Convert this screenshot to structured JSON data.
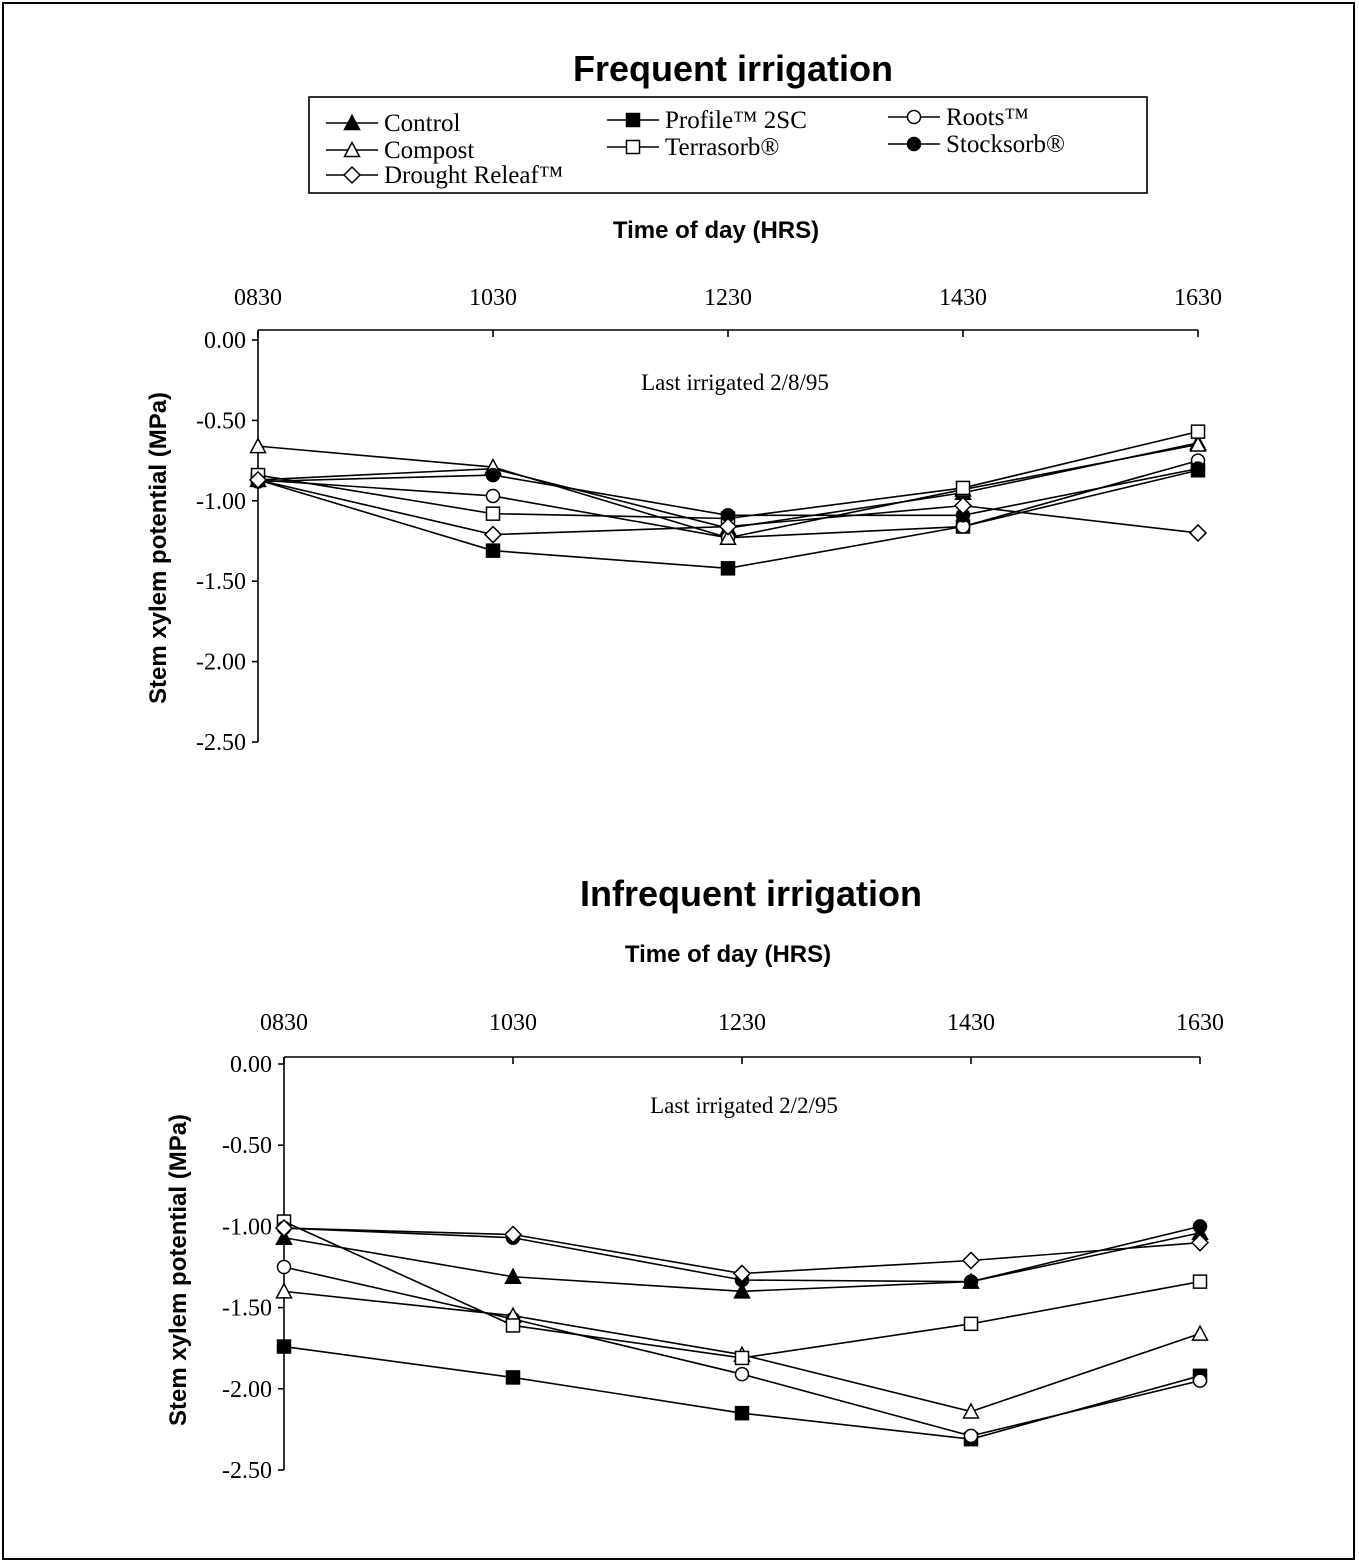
{
  "figure": {
    "legend": [
      {
        "name": "Control",
        "marker": "triangle-filled"
      },
      {
        "name": "Profile™ 2SC",
        "marker": "square-filled"
      },
      {
        "name": "Roots™",
        "marker": "circle-open"
      },
      {
        "name": "Compost",
        "marker": "triangle-open"
      },
      {
        "name": "Terrasorb®",
        "marker": "square-open"
      },
      {
        "name": "Stocksorb®",
        "marker": "circle-filled"
      },
      {
        "name": "Drought Releaf™",
        "marker": "diamond-open"
      }
    ]
  },
  "chart_data": [
    {
      "type": "line",
      "title": "Frequent irrigation",
      "xlabel": "Time of day (HRS)",
      "ylabel": "Stem xylem potential (MPa)",
      "annotation": "Last irrigated 2/8/95",
      "x": [
        "0830",
        "1030",
        "1230",
        "1430",
        "1630"
      ],
      "ylim": [
        -2.5,
        0
      ],
      "yticks": [
        "0.00",
        "-0.50",
        "-1.00",
        "-1.50",
        "-2.00",
        "-2.50"
      ],
      "x_axis_position": "top",
      "series": [
        {
          "name": "Control",
          "values": [
            -0.87,
            -0.8,
            -1.17,
            -0.95,
            -0.64
          ]
        },
        {
          "name": "Profile™ 2SC",
          "values": [
            -0.87,
            -1.31,
            -1.42,
            -1.16,
            -0.81
          ]
        },
        {
          "name": "Roots™",
          "values": [
            -0.87,
            -0.97,
            -1.23,
            -1.16,
            -0.75
          ]
        },
        {
          "name": "Compost",
          "values": [
            -0.66,
            -0.79,
            -1.23,
            -0.93,
            -0.65
          ]
        },
        {
          "name": "Terrasorb®",
          "values": [
            -0.84,
            -1.08,
            -1.11,
            -0.92,
            -0.57
          ]
        },
        {
          "name": "Stocksorb®",
          "values": [
            -0.88,
            -0.84,
            -1.09,
            -1.09,
            -0.8
          ]
        },
        {
          "name": "Drought Releaf™",
          "values": [
            -0.87,
            -1.21,
            -1.16,
            -1.03,
            -1.2
          ]
        }
      ]
    },
    {
      "type": "line",
      "title": "Infrequent irrigation",
      "xlabel": "Time of day (HRS)",
      "ylabel": "Stem xylem potential (MPa)",
      "annotation": "Last irrigated 2/2/95",
      "x": [
        "0830",
        "1030",
        "1230",
        "1430",
        "1630"
      ],
      "ylim": [
        -2.5,
        0
      ],
      "yticks": [
        "0.00",
        "-0.50",
        "-1.00",
        "-1.50",
        "-2.00",
        "-2.50"
      ],
      "x_axis_position": "top",
      "series": [
        {
          "name": "Control",
          "values": [
            -1.07,
            -1.31,
            -1.4,
            -1.34,
            -1.04
          ]
        },
        {
          "name": "Profile™ 2SC",
          "values": [
            -1.74,
            -1.93,
            -2.15,
            -2.31,
            -1.92
          ]
        },
        {
          "name": "Roots™",
          "values": [
            -1.25,
            -1.57,
            -1.91,
            -2.29,
            -1.95
          ]
        },
        {
          "name": "Compost",
          "values": [
            -1.4,
            -1.55,
            -1.79,
            -2.14,
            -1.66
          ]
        },
        {
          "name": "Terrasorb®",
          "values": [
            -0.97,
            -1.61,
            -1.81,
            -1.6,
            -1.34
          ]
        },
        {
          "name": "Stocksorb®",
          "values": [
            -1.01,
            -1.07,
            -1.33,
            -1.34,
            -1.0
          ]
        },
        {
          "name": "Drought Releaf™",
          "values": [
            -1.01,
            -1.05,
            -1.29,
            -1.21,
            -1.1
          ]
        }
      ]
    }
  ]
}
